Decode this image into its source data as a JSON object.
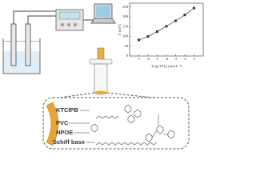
{
  "chart_data": {
    "type": "line",
    "y_label": "E (mV)",
    "x_label": "-Log [UO₂] (mol L⁻¹)",
    "x": [
      -7,
      -6,
      -5,
      -4,
      -3,
      -2,
      -1
    ],
    "values": [
      82,
      100,
      125,
      152,
      180,
      210,
      245
    ],
    "color": "#333333",
    "xlim": [
      -8,
      0
    ],
    "xticks": [
      -7,
      -6,
      -5,
      -4,
      -3,
      -2,
      -1
    ],
    "ylim": [
      0,
      270
    ],
    "yticks": [
      0,
      50,
      100,
      150,
      200,
      250
    ]
  },
  "membrane_labels": [
    "KTClPB",
    "PVC",
    "NPOE",
    "Schiff base"
  ]
}
